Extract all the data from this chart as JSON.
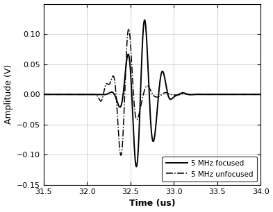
{
  "title": "",
  "xlabel": "Time (us)",
  "ylabel": "Amplitude (V)",
  "xlim": [
    31.5,
    34
  ],
  "ylim": [
    -0.15,
    0.15
  ],
  "xticks": [
    31.5,
    32,
    32.5,
    33,
    33.5,
    34
  ],
  "yticks": [
    -0.15,
    -0.1,
    -0.05,
    0,
    0.05,
    0.1
  ],
  "legend": [
    "5 MHz focused",
    "5 MHz unfocused"
  ],
  "grid": true,
  "focused_color": "#000000",
  "unfocused_color": "#000000",
  "focused_lw": 1.4,
  "unfocused_lw": 1.1
}
